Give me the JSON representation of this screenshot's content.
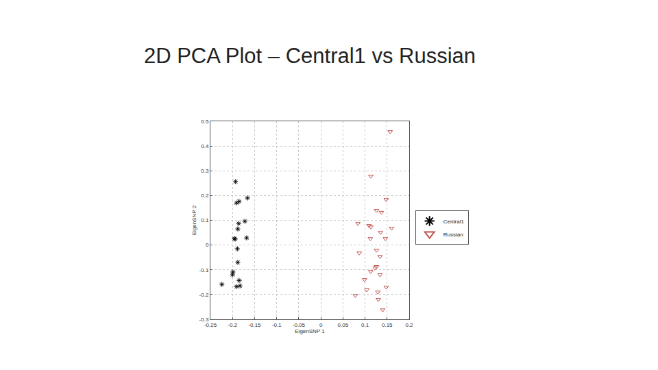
{
  "chart_data": {
    "type": "scatter",
    "title": "2D PCA Plot – Central1 vs Russian",
    "xlabel": "EigenSNP 1",
    "ylabel": "EigenSNP 2",
    "xlim": [
      -0.25,
      0.2
    ],
    "xticks": [
      -0.25,
      -0.2,
      -0.15,
      -0.1,
      -0.05,
      0,
      0.05,
      0.1,
      0.15,
      0.2
    ],
    "ylim": [
      -0.3,
      0.5
    ],
    "yticks": [
      -0.3,
      -0.2,
      -0.1,
      0,
      0.1,
      0.2,
      0.3,
      0.4,
      0.5
    ],
    "grid": true,
    "legend": "right",
    "series": [
      {
        "name": "Central1",
        "color": "#000000",
        "marker": "asterisk",
        "x": [
          -0.193,
          -0.191,
          -0.185,
          -0.166,
          -0.172,
          -0.186,
          -0.188,
          -0.168,
          -0.194,
          -0.196,
          -0.189,
          -0.188,
          -0.199,
          -0.2,
          -0.185,
          -0.224,
          -0.191,
          -0.183
        ],
        "values": [
          0.256,
          0.17,
          0.176,
          0.19,
          0.096,
          0.087,
          0.065,
          0.029,
          0.024,
          0.026,
          -0.015,
          -0.07,
          -0.109,
          -0.12,
          -0.143,
          -0.159,
          -0.168,
          -0.165
        ]
      },
      {
        "name": "Russian",
        "color": "#c0504d",
        "marker": "triangle-down",
        "x": [
          0.157,
          0.113,
          0.148,
          0.126,
          0.137,
          0.084,
          0.109,
          0.113,
          0.16,
          0.112,
          0.135,
          0.146,
          0.126,
          0.087,
          0.134,
          0.123,
          0.126,
          0.113,
          0.134,
          0.099,
          0.148,
          0.104,
          0.129,
          0.078,
          0.13,
          0.14
        ],
        "values": [
          0.458,
          0.278,
          0.184,
          0.14,
          0.132,
          0.087,
          0.079,
          0.073,
          0.068,
          0.026,
          0.051,
          0.026,
          -0.021,
          -0.032,
          -0.046,
          -0.093,
          -0.087,
          -0.107,
          -0.12,
          -0.14,
          -0.17,
          -0.181,
          -0.19,
          -0.204,
          -0.22,
          -0.262
        ]
      }
    ]
  }
}
